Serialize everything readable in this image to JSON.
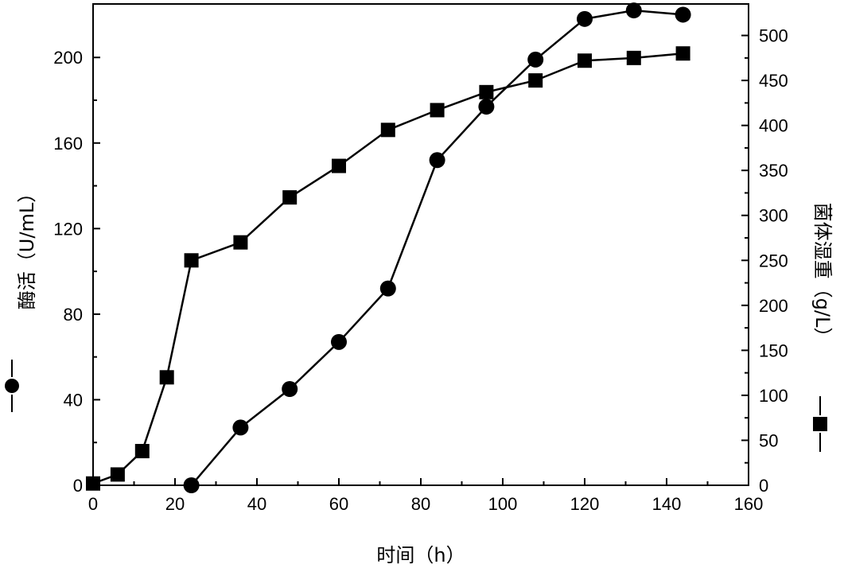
{
  "chart_data": {
    "type": "line",
    "xlabel": "时间（h）",
    "ylabel_left": "酶活（U/mL）",
    "ylabel_right": "菌体湿重（g/L）",
    "xlim": [
      0,
      160
    ],
    "ylim_left": [
      0,
      225
    ],
    "ylim_right": [
      0,
      535
    ],
    "x_ticks": [
      "0",
      "20",
      "40",
      "60",
      "80",
      "100",
      "120",
      "140",
      "160"
    ],
    "y_left_ticks": [
      "0",
      "40",
      "80",
      "120",
      "160",
      "200"
    ],
    "y_right_ticks": [
      "0",
      "50",
      "100",
      "150",
      "200",
      "250",
      "300",
      "350",
      "400",
      "450",
      "500"
    ],
    "legend_left_marker": "circle",
    "legend_right_marker": "square",
    "grid": false,
    "series": [
      {
        "axis": "left",
        "marker": "circle",
        "x": [
          24,
          36,
          48,
          60,
          72,
          84,
          96,
          108,
          120,
          132,
          144
        ],
        "values": [
          0,
          27,
          45,
          67,
          92,
          152,
          177,
          199,
          218,
          222,
          220
        ]
      },
      {
        "axis": "right",
        "marker": "square",
        "x": [
          0,
          6,
          12,
          18,
          24,
          36,
          48,
          60,
          72,
          84,
          96,
          108,
          120,
          132,
          144
        ],
        "values": [
          2,
          12,
          38,
          120,
          250,
          270,
          320,
          355,
          395,
          417,
          437,
          450,
          472,
          475,
          480
        ]
      }
    ]
  }
}
